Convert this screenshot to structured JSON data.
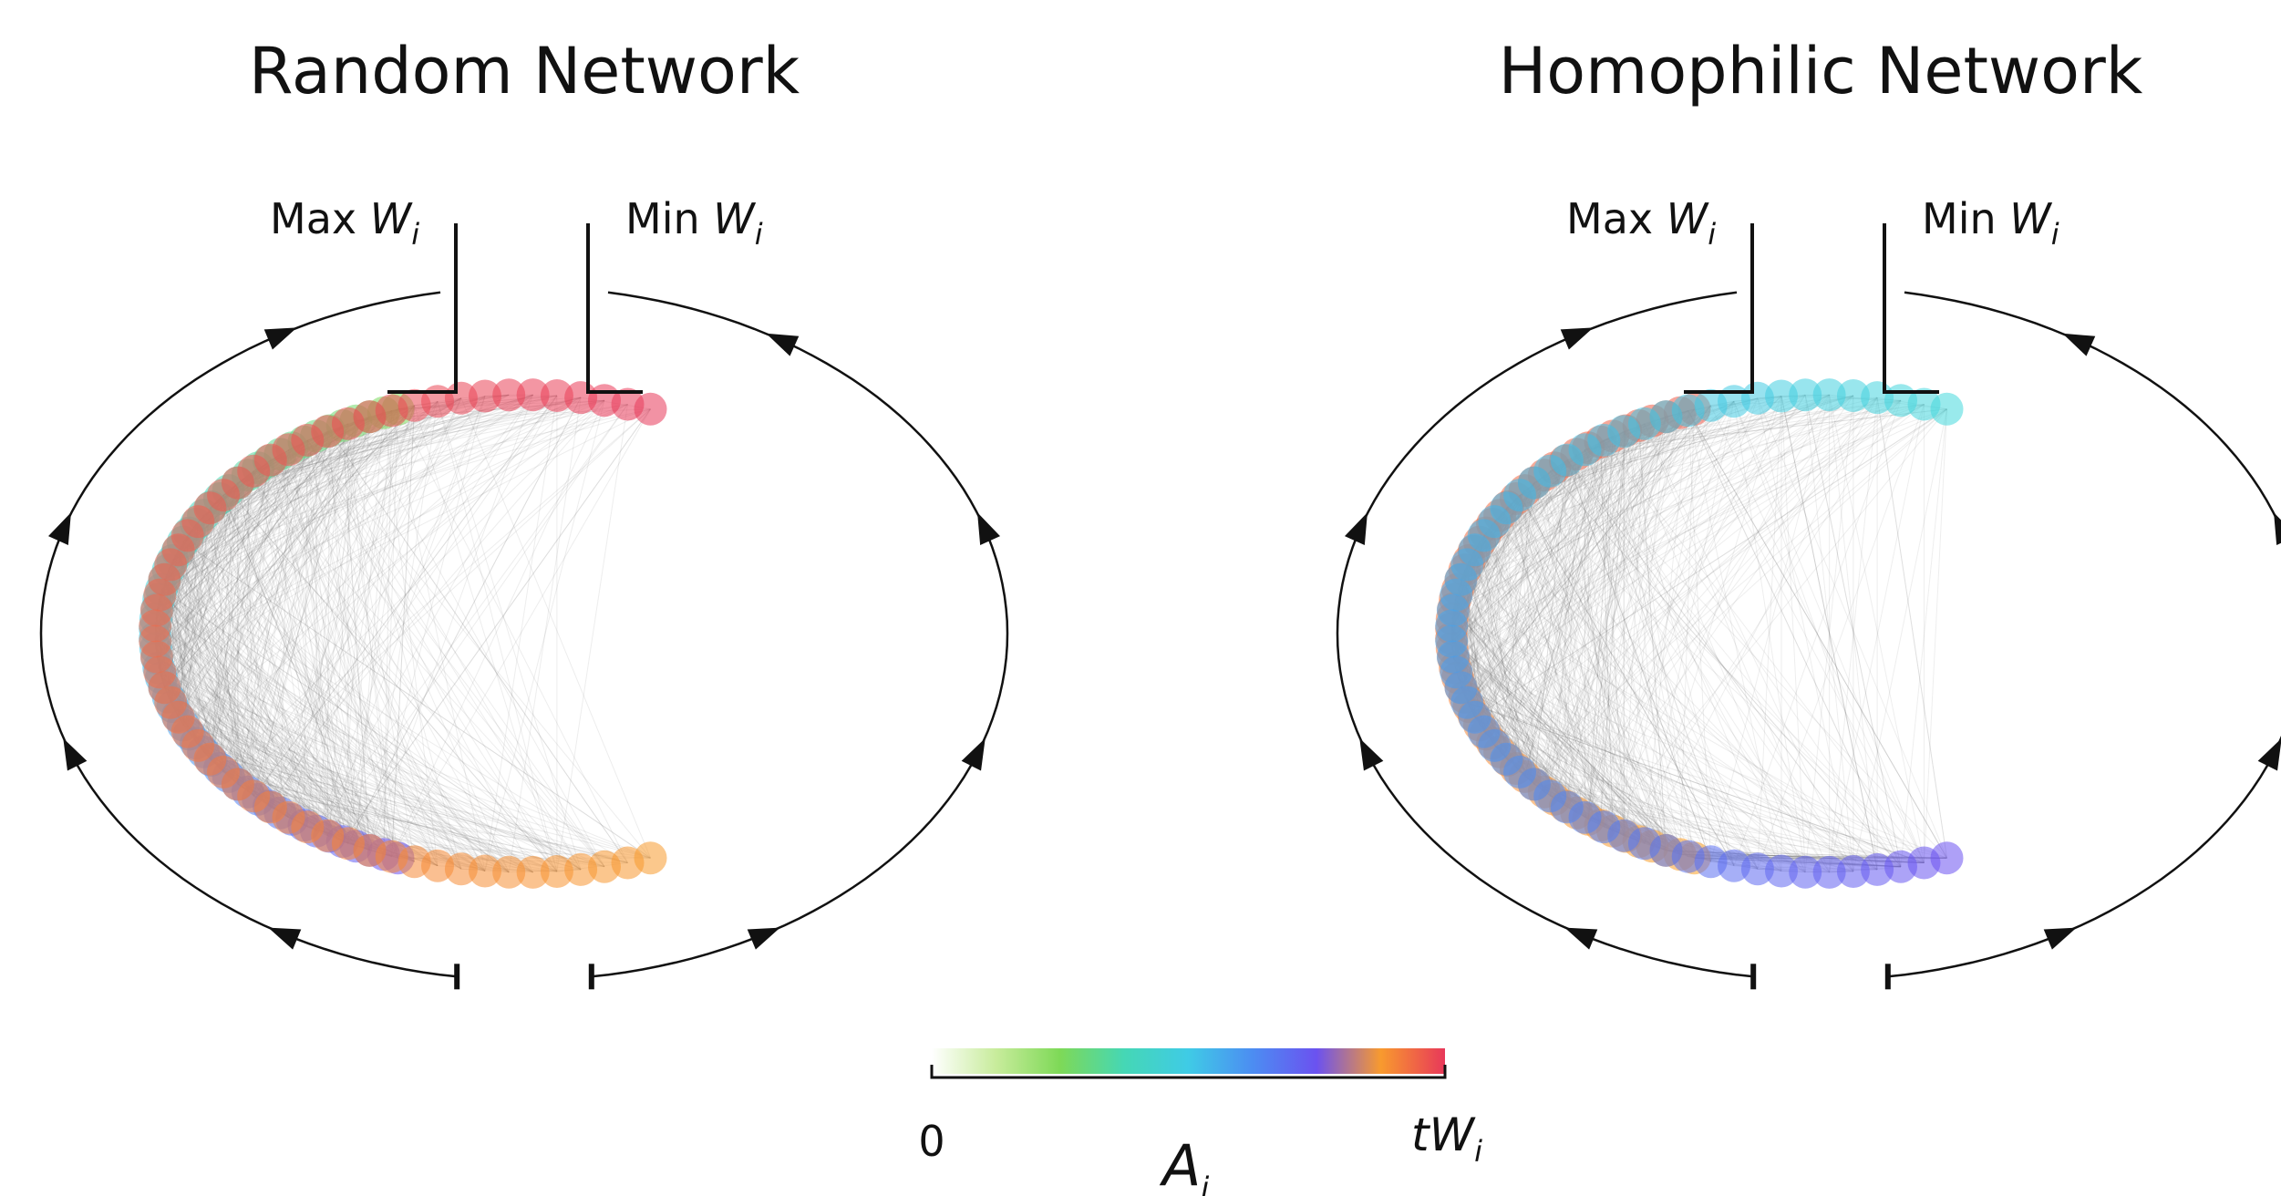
{
  "panels": [
    {
      "title": "Random Network",
      "max_label": {
        "text": "Max ",
        "var": "W",
        "sub": "i"
      },
      "min_label": {
        "text": "Min ",
        "var": "W",
        "sub": "i"
      },
      "layout": "random"
    },
    {
      "title": "Homophilic Network",
      "max_label": {
        "text": "Max ",
        "var": "W",
        "sub": "i"
      },
      "min_label": {
        "text": "Min ",
        "var": "W",
        "sub": "i"
      },
      "layout": "homophilic"
    }
  ],
  "colorbar": {
    "min_label": "0",
    "max_label": {
      "prefix": "t",
      "var": "W",
      "sub": "i"
    },
    "symbol": {
      "var": "A",
      "sub": "i"
    },
    "colors": [
      "#ffffff",
      "#c8ec9c",
      "#7ed957",
      "#45d7b5",
      "#3fcbe6",
      "#4c8df2",
      "#6b52f0",
      "#f89a2e",
      "#e8385a"
    ]
  }
}
